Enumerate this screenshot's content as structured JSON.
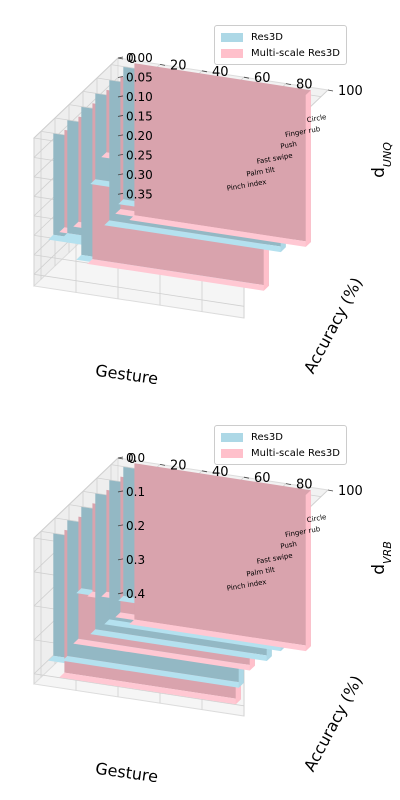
{
  "chart_data": [
    {
      "type": "bar3d",
      "categories": [
        "Pinch index",
        "Palm tilt",
        "Fast swipe",
        "Push",
        "Finger rub",
        "Circle"
      ],
      "xlabel": "Gesture",
      "ylabel": "Accuracy (%)",
      "zlabel_main": "d",
      "zlabel_sub": "UNQ",
      "y_ticks": [
        "0",
        "20",
        "40",
        "60",
        "80",
        "100"
      ],
      "z_ticks": [
        "0.00",
        "0.05",
        "0.10",
        "0.15",
        "0.20",
        "0.25",
        "0.30",
        "0.35"
      ],
      "zlim": [
        0,
        0.38
      ],
      "grid": true,
      "legend_position": "top-right",
      "series": [
        {
          "name": "Res3D",
          "color": "#add8e6",
          "values": [
            0.26,
            0.29,
            0.38,
            0.22,
            0.36,
            0.34
          ]
        },
        {
          "name": "Multi-scale Res3D",
          "color": "#ffc0cb",
          "values": [
            0.25,
            0.27,
            0.4,
            0.16,
            0.34,
            0.39
          ]
        }
      ]
    },
    {
      "type": "bar3d",
      "categories": [
        "Pinch index",
        "Palm tilt",
        "Fast swipe",
        "Push",
        "Finger rub",
        "Circle"
      ],
      "xlabel": "Gesture",
      "ylabel": "Accuracy (%)",
      "zlabel_main": "d",
      "zlabel_sub": "VRB",
      "y_ticks": [
        "0",
        "20",
        "40",
        "60",
        "80",
        "100"
      ],
      "z_ticks": [
        "0.0",
        "0.1",
        "0.2",
        "0.3",
        "0.4"
      ],
      "zlim": [
        0,
        0.43
      ],
      "grid": true,
      "legend_position": "top-right",
      "series": [
        {
          "name": "Res3D",
          "color": "#add8e6",
          "values": [
            0.36,
            0.4,
            0.24,
            0.4,
            0.41,
            0.38
          ]
        },
        {
          "name": "Multi-scale Res3D",
          "color": "#ffc0cb",
          "values": [
            0.42,
            0.36,
            0.26,
            0.3,
            0.4,
            0.46
          ]
        }
      ]
    }
  ]
}
